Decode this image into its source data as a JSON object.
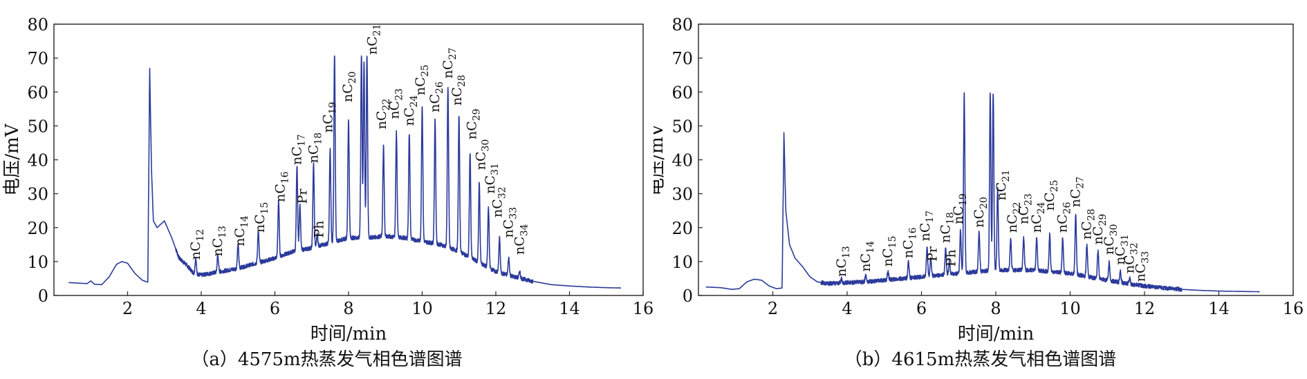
{
  "chart_data": [
    {
      "type": "line",
      "caption": "（a）4575m热蒸发气相色谱图谱",
      "xlabel": "时间/min",
      "ylabel": "电压/mV",
      "xlim": [
        0,
        16
      ],
      "ylim": [
        0,
        80
      ],
      "xticks": [
        "2",
        "4",
        "6",
        "8",
        "10",
        "12",
        "14",
        "16"
      ],
      "yticks": [
        "0",
        "10",
        "20",
        "30",
        "40",
        "50",
        "60",
        "70",
        "80"
      ],
      "color": "#2b3a9a",
      "grid": false,
      "baseline": {
        "x": [
          0.4,
          0.9,
          1.0,
          1.1,
          1.3,
          1.5,
          1.7,
          1.85,
          2.0,
          2.2,
          2.4,
          2.55,
          2.6,
          2.65,
          2.7,
          2.8,
          2.9,
          3.0,
          3.2,
          3.4,
          3.6,
          3.8,
          4.0,
          4.5,
          5.0,
          5.5,
          6.0,
          6.5,
          7.0,
          7.5,
          8.0,
          8.5,
          9.0,
          9.5,
          10.0,
          10.5,
          11.0,
          11.5,
          12.0,
          12.5,
          13.0,
          13.5,
          14.0,
          14.5,
          15.0,
          15.4
        ],
        "y": [
          3.8,
          3.5,
          4.3,
          3.3,
          3.2,
          5.5,
          9.2,
          10,
          9.5,
          6.5,
          4.5,
          3.9,
          67,
          37,
          22,
          20,
          21,
          22,
          17,
          11,
          9,
          6.5,
          6,
          7,
          8,
          9.5,
          11,
          13,
          14,
          15.5,
          17,
          17,
          17.5,
          17,
          16,
          15,
          13,
          10,
          7,
          5.5,
          4.2,
          3.2,
          2.8,
          2.5,
          2.3,
          2.2
        ]
      },
      "peaks": [
        {
          "name": "nC12",
          "x": 3.85,
          "height": 11
        },
        {
          "name": "nC13",
          "x": 4.45,
          "height": 12
        },
        {
          "name": "nC14",
          "x": 5.0,
          "height": 15
        },
        {
          "name": "nC15",
          "x": 5.55,
          "height": 19
        },
        {
          "name": "nC16",
          "x": 6.1,
          "height": 28
        },
        {
          "name": "nC17",
          "x": 6.6,
          "height": 38
        },
        {
          "name": "Pr",
          "x": 6.68,
          "height": 27
        },
        {
          "name": "nC18",
          "x": 7.05,
          "height": 39
        },
        {
          "name": "Ph",
          "x": 7.15,
          "height": 18
        },
        {
          "name": "nC19",
          "x": 7.5,
          "height": 43
        },
        {
          "name": "",
          "x": 7.62,
          "height": 71
        },
        {
          "name": "nC20",
          "x": 8.0,
          "height": 52
        },
        {
          "name": "",
          "x": 8.35,
          "height": 71
        },
        {
          "name": "",
          "x": 8.42,
          "height": 69
        },
        {
          "name": "nC21",
          "x": 8.5,
          "height": 71
        },
        {
          "name": "nC22",
          "x": 8.95,
          "height": 44
        },
        {
          "name": "nC23",
          "x": 9.3,
          "height": 48
        },
        {
          "name": "nC24",
          "x": 9.65,
          "height": 48
        },
        {
          "name": "nC25",
          "x": 10.0,
          "height": 56
        },
        {
          "name": "nC26",
          "x": 10.35,
          "height": 52
        },
        {
          "name": "nC27",
          "x": 10.7,
          "height": 61
        },
        {
          "name": "nC28",
          "x": 11.0,
          "height": 53
        },
        {
          "name": "nC29",
          "x": 11.3,
          "height": 42
        },
        {
          "name": "nC30",
          "x": 11.55,
          "height": 33
        },
        {
          "name": "nC31",
          "x": 11.8,
          "height": 26
        },
        {
          "name": "nC32",
          "x": 12.1,
          "height": 17
        },
        {
          "name": "nC33",
          "x": 12.35,
          "height": 11
        },
        {
          "name": "nC34",
          "x": 12.65,
          "height": 7
        }
      ],
      "annotations": [
        {
          "text": "nC",
          "sub": "12",
          "x": 3.85,
          "y": 10.5
        },
        {
          "text": "nC",
          "sub": "13",
          "x": 4.45,
          "y": 11.5
        },
        {
          "text": "nC",
          "sub": "14",
          "x": 5.05,
          "y": 14.5
        },
        {
          "text": "nC",
          "sub": "15",
          "x": 5.6,
          "y": 18.5
        },
        {
          "text": "nC",
          "sub": "16",
          "x": 6.15,
          "y": 27.5
        },
        {
          "text": "nC",
          "sub": "17",
          "x": 6.6,
          "y": 38.5
        },
        {
          "text": "Pr",
          "sub": "",
          "x": 6.75,
          "y": 27
        },
        {
          "text": "nC",
          "sub": "18",
          "x": 7.05,
          "y": 39
        },
        {
          "text": "Ph",
          "sub": "",
          "x": 7.2,
          "y": 17
        },
        {
          "text": "nC",
          "sub": "19",
          "x": 7.45,
          "y": 48
        },
        {
          "text": "nC",
          "sub": "20",
          "x": 7.98,
          "y": 57
        },
        {
          "text": "nC",
          "sub": "21",
          "x": 8.65,
          "y": 71
        },
        {
          "text": "nC",
          "sub": "22",
          "x": 8.9,
          "y": 49
        },
        {
          "text": "nC",
          "sub": "23",
          "x": 9.25,
          "y": 52
        },
        {
          "text": "nC",
          "sub": "24",
          "x": 9.65,
          "y": 50
        },
        {
          "text": "nC",
          "sub": "25",
          "x": 9.95,
          "y": 59
        },
        {
          "text": "nC",
          "sub": "26",
          "x": 10.35,
          "y": 54
        },
        {
          "text": "nC",
          "sub": "27",
          "x": 10.7,
          "y": 64
        },
        {
          "text": "nC",
          "sub": "28",
          "x": 10.95,
          "y": 56
        },
        {
          "text": "nC",
          "sub": "29",
          "x": 11.35,
          "y": 46
        },
        {
          "text": "nC",
          "sub": "30",
          "x": 11.6,
          "y": 37
        },
        {
          "text": "nC",
          "sub": "31",
          "x": 11.85,
          "y": 30
        },
        {
          "text": "nC",
          "sub": "32",
          "x": 12.05,
          "y": 23
        },
        {
          "text": "nC",
          "sub": "33",
          "x": 12.35,
          "y": 17
        },
        {
          "text": "nC",
          "sub": "34",
          "x": 12.65,
          "y": 12
        }
      ]
    },
    {
      "type": "line",
      "caption": "（b）4615m热蒸发气相色谱图谱",
      "xlabel": "时间/min",
      "ylabel": "电压/mV",
      "xlim": [
        0,
        16
      ],
      "ylim": [
        0,
        80
      ],
      "xticks": [
        "2",
        "4",
        "6",
        "8",
        "10",
        "12",
        "14",
        "16"
      ],
      "yticks": [
        "0",
        "10",
        "20",
        "30",
        "40",
        "50",
        "60",
        "70",
        "80"
      ],
      "color": "#2b3a9a",
      "grid": false,
      "baseline": {
        "x": [
          0.2,
          0.6,
          0.9,
          1.1,
          1.3,
          1.5,
          1.7,
          1.9,
          2.1,
          2.25,
          2.3,
          2.35,
          2.45,
          2.6,
          2.8,
          3.0,
          3.2,
          3.5,
          4.0,
          4.5,
          5.0,
          5.5,
          6.0,
          6.5,
          7.0,
          7.5,
          8.0,
          8.5,
          9.0,
          9.5,
          10.0,
          10.5,
          11.0,
          11.5,
          12.0,
          12.5,
          13.0,
          13.5,
          14.0,
          14.5,
          15.1
        ],
        "y": [
          2.5,
          2.3,
          1.8,
          2.0,
          4.0,
          4.8,
          4.5,
          2.8,
          2.0,
          2.2,
          48,
          25,
          15,
          11,
          8.5,
          5.5,
          4,
          3.5,
          3.8,
          4,
          4.5,
          5,
          5.5,
          6,
          6.5,
          7,
          7.5,
          7.5,
          7.5,
          7,
          6.5,
          5.5,
          4.5,
          3.5,
          2.8,
          2.2,
          1.8,
          1.5,
          1.3,
          1.2,
          1.1
        ]
      },
      "peaks": [
        {
          "name": "nC13",
          "x": 3.85,
          "height": 5
        },
        {
          "name": "nC14",
          "x": 4.5,
          "height": 6
        },
        {
          "name": "nC15",
          "x": 5.1,
          "height": 7
        },
        {
          "name": "nC16",
          "x": 5.65,
          "height": 10
        },
        {
          "name": "nC17",
          "x": 6.15,
          "height": 14
        },
        {
          "name": "Pr",
          "x": 6.25,
          "height": 11
        },
        {
          "name": "nC18",
          "x": 6.65,
          "height": 14
        },
        {
          "name": "Ph",
          "x": 6.75,
          "height": 10
        },
        {
          "name": "nC19",
          "x": 7.05,
          "height": 19
        },
        {
          "name": "",
          "x": 7.15,
          "height": 60
        },
        {
          "name": "nC20",
          "x": 7.55,
          "height": 19
        },
        {
          "name": "",
          "x": 7.85,
          "height": 60
        },
        {
          "name": "",
          "x": 7.93,
          "height": 60
        },
        {
          "name": "nC21",
          "x": 8.05,
          "height": 32
        },
        {
          "name": "nC22",
          "x": 8.4,
          "height": 17
        },
        {
          "name": "nC23",
          "x": 8.75,
          "height": 17
        },
        {
          "name": "nC24",
          "x": 9.1,
          "height": 17
        },
        {
          "name": "nC25",
          "x": 9.45,
          "height": 18
        },
        {
          "name": "nC26",
          "x": 9.8,
          "height": 17
        },
        {
          "name": "nC27",
          "x": 10.15,
          "height": 24
        },
        {
          "name": "nC28",
          "x": 10.45,
          "height": 15
        },
        {
          "name": "nC29",
          "x": 10.75,
          "height": 13
        },
        {
          "name": "nC30",
          "x": 11.05,
          "height": 10
        },
        {
          "name": "nC31",
          "x": 11.35,
          "height": 7
        },
        {
          "name": "nC32",
          "x": 11.6,
          "height": 5
        },
        {
          "name": "nC33",
          "x": 11.9,
          "height": 3
        }
      ],
      "annotations": [
        {
          "text": "nC",
          "sub": "13",
          "x": 3.85,
          "y": 5.5
        },
        {
          "text": "nC",
          "sub": "14",
          "x": 4.5,
          "y": 7
        },
        {
          "text": "nC",
          "sub": "15",
          "x": 5.1,
          "y": 8.5
        },
        {
          "text": "nC",
          "sub": "16",
          "x": 5.65,
          "y": 11
        },
        {
          "text": "nC",
          "sub": "17",
          "x": 6.1,
          "y": 16
        },
        {
          "text": "Pr",
          "sub": "",
          "x": 6.3,
          "y": 10
        },
        {
          "text": "nC",
          "sub": "18",
          "x": 6.65,
          "y": 15.5
        },
        {
          "text": "Ph",
          "sub": "",
          "x": 6.8,
          "y": 8.5
        },
        {
          "text": "nC",
          "sub": "19",
          "x": 7.0,
          "y": 21
        },
        {
          "text": "nC",
          "sub": "20",
          "x": 7.55,
          "y": 20
        },
        {
          "text": "nC",
          "sub": "21",
          "x": 8.15,
          "y": 28
        },
        {
          "text": "nC",
          "sub": "22",
          "x": 8.45,
          "y": 18.5
        },
        {
          "text": "nC",
          "sub": "23",
          "x": 8.75,
          "y": 21
        },
        {
          "text": "nC",
          "sub": "24",
          "x": 9.1,
          "y": 18.5
        },
        {
          "text": "nC",
          "sub": "25",
          "x": 9.45,
          "y": 25
        },
        {
          "text": "nC",
          "sub": "26",
          "x": 9.8,
          "y": 18.5
        },
        {
          "text": "nC",
          "sub": "27",
          "x": 10.15,
          "y": 26
        },
        {
          "text": "nC",
          "sub": "28",
          "x": 10.45,
          "y": 16.5
        },
        {
          "text": "nC",
          "sub": "29",
          "x": 10.75,
          "y": 15
        },
        {
          "text": "nC",
          "sub": "30",
          "x": 11.05,
          "y": 12
        },
        {
          "text": "nC",
          "sub": "31",
          "x": 11.35,
          "y": 9
        },
        {
          "text": "nC",
          "sub": "32",
          "x": 11.6,
          "y": 6.5
        },
        {
          "text": "nC",
          "sub": "33",
          "x": 11.9,
          "y": 4
        }
      ]
    }
  ]
}
